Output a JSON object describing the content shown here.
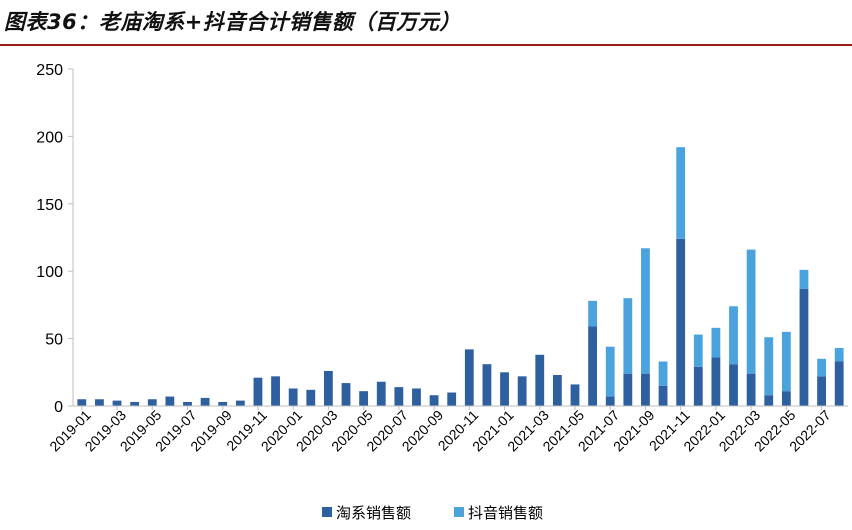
{
  "header": {
    "title": "图表36：老庙淘系+抖音合计销售额（百万元）"
  },
  "chart_data": {
    "type": "bar",
    "stacked": true,
    "title": "图表36：老庙淘系+抖音合计销售额（百万元）",
    "xlabel": "",
    "ylabel": "",
    "ylim": [
      0,
      250
    ],
    "yticks": [
      0,
      50,
      100,
      150,
      200,
      250
    ],
    "grid": false,
    "legend_position": "bottom",
    "categories": [
      "2019-01",
      "2019-02",
      "2019-03",
      "2019-04",
      "2019-05",
      "2019-06",
      "2019-07",
      "2019-08",
      "2019-09",
      "2019-10",
      "2019-11",
      "2019-12",
      "2020-01",
      "2020-02",
      "2020-03",
      "2020-04",
      "2020-05",
      "2020-06",
      "2020-07",
      "2020-08",
      "2020-09",
      "2020-10",
      "2020-11",
      "2020-12",
      "2021-01",
      "2021-02",
      "2021-03",
      "2021-04",
      "2021-05",
      "2021-06",
      "2021-07",
      "2021-08",
      "2021-09",
      "2021-10",
      "2021-11",
      "2021-12",
      "2022-01",
      "2022-02",
      "2022-03",
      "2022-04",
      "2022-05",
      "2022-06",
      "2022-07",
      "2022-08"
    ],
    "xtick_labels": [
      "2019-01",
      "2019-03",
      "2019-05",
      "2019-07",
      "2019-09",
      "2019-11",
      "2020-01",
      "2020-03",
      "2020-05",
      "2020-07",
      "2020-09",
      "2020-11",
      "2021-01",
      "2021-03",
      "2021-05",
      "2021-07",
      "2021-09",
      "2021-11",
      "2022-01",
      "2022-03",
      "2022-05",
      "2022-07"
    ],
    "series": [
      {
        "name": "淘系销售额",
        "color": "#2e5f9e",
        "values": [
          5,
          5,
          4,
          3,
          5,
          7,
          3,
          6,
          3,
          4,
          21,
          22,
          13,
          12,
          26,
          17,
          11,
          18,
          14,
          13,
          8,
          10,
          42,
          31,
          25,
          22,
          38,
          23,
          16,
          59,
          7,
          24,
          24,
          15,
          124,
          29,
          36,
          31,
          24,
          8,
          11,
          87,
          22,
          33
        ]
      },
      {
        "name": "抖音销售额",
        "color": "#4ba3de",
        "values": [
          0,
          0,
          0,
          0,
          0,
          0,
          0,
          0,
          0,
          0,
          0,
          0,
          0,
          0,
          0,
          0,
          0,
          0,
          0,
          0,
          0,
          0,
          0,
          0,
          0,
          0,
          0,
          0,
          0,
          19,
          37,
          56,
          93,
          18,
          68,
          24,
          22,
          43,
          92,
          43,
          44,
          14,
          13,
          10
        ]
      }
    ]
  }
}
